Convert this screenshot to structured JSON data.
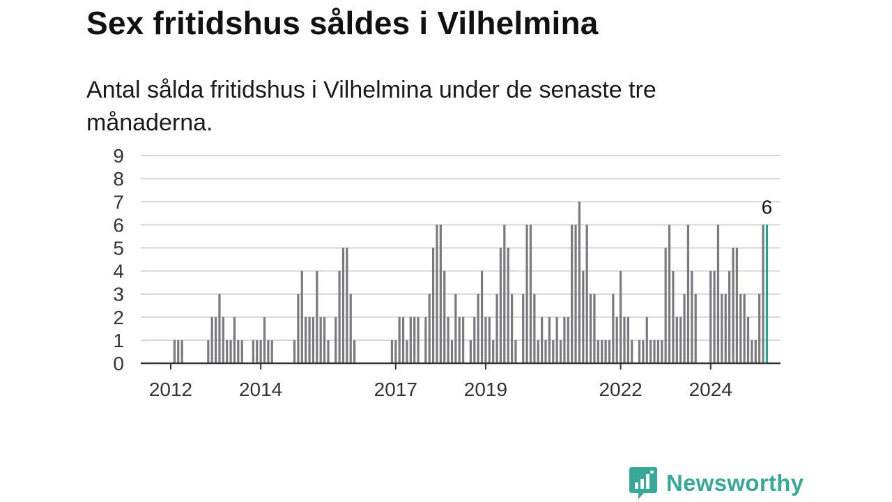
{
  "page": {
    "title": "Sex fritidshus såldes i Vilhelmina",
    "subtitle": "Antal sålda fritidshus i Vilhelmina under de senaste tre månaderna.",
    "brand": "Newsworthy"
  },
  "colors": {
    "bar": "#7a797e",
    "highlight": "#27a396",
    "grid": "#d6d6d6",
    "axis": "#333333",
    "brand": "#3aa898"
  },
  "chart_data": {
    "type": "bar",
    "title": "Sex fritidshus såldes i Vilhelmina",
    "subtitle": "Antal sålda fritidshus i Vilhelmina under de senaste tre månaderna.",
    "xlabel": "",
    "ylabel": "",
    "ylim": [
      0,
      9
    ],
    "yticks": [
      "0",
      "1",
      "2",
      "3",
      "4",
      "5",
      "6",
      "7",
      "8",
      "9"
    ],
    "xticks": [
      {
        "label": "2012",
        "index": 0
      },
      {
        "label": "2014",
        "index": 24
      },
      {
        "label": "2017",
        "index": 60
      },
      {
        "label": "2019",
        "index": 84
      },
      {
        "label": "2022",
        "index": 120
      },
      {
        "label": "2024",
        "index": 144
      }
    ],
    "grid": true,
    "frequency": "monthly rolling three-month total",
    "start": "2011-12",
    "values": [
      0,
      1,
      1,
      1,
      0,
      0,
      0,
      0,
      0,
      0,
      1,
      2,
      2,
      3,
      2,
      1,
      1,
      2,
      1,
      1,
      0,
      0,
      1,
      1,
      1,
      2,
      1,
      1,
      0,
      0,
      0,
      0,
      0,
      1,
      3,
      4,
      2,
      2,
      2,
      4,
      2,
      2,
      1,
      0,
      2,
      4,
      5,
      5,
      3,
      1,
      0,
      0,
      0,
      0,
      0,
      0,
      0,
      0,
      0,
      1,
      1,
      2,
      2,
      1,
      2,
      2,
      2,
      0,
      2,
      3,
      5,
      6,
      6,
      4,
      2,
      1,
      3,
      2,
      2,
      0,
      1,
      2,
      3,
      4,
      2,
      2,
      1,
      3,
      5,
      6,
      5,
      3,
      1,
      0,
      3,
      6,
      6,
      3,
      1,
      2,
      1,
      2,
      1,
      2,
      1,
      2,
      2,
      6,
      6,
      7,
      4,
      6,
      3,
      3,
      1,
      1,
      1,
      1,
      3,
      2,
      4,
      2,
      2,
      1,
      0,
      1,
      1,
      2,
      1,
      1,
      1,
      1,
      5,
      6,
      4,
      2,
      2,
      3,
      6,
      4,
      3,
      0,
      0,
      0,
      4,
      4,
      6,
      3,
      3,
      4,
      5,
      5,
      3,
      3,
      2,
      1,
      1,
      3,
      6,
      6
    ],
    "highlight_index": 159,
    "highlight_label": "6"
  }
}
